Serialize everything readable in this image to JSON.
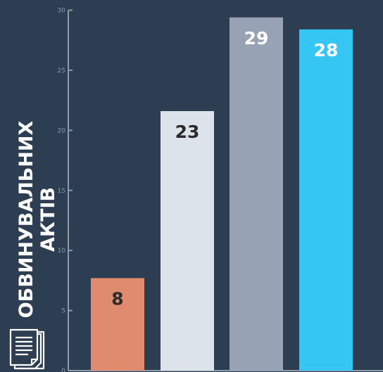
{
  "chart_data": {
    "type": "bar",
    "categories": [
      "",
      "",
      "",
      ""
    ],
    "values": [
      8,
      23,
      29,
      28
    ],
    "bar_heights_estimated": [
      7.7,
      21.6,
      29.4,
      28.4
    ],
    "data_labels": [
      "8",
      "23",
      "29",
      "28"
    ],
    "colors": [
      "#e08a6e",
      "#dde3eb",
      "#97a3b5",
      "#35c6f3"
    ],
    "ylabel_lines": [
      "ОБВИНУВАЛЬНИХ",
      "АКТІВ"
    ],
    "yticks": [
      0,
      5,
      10,
      15,
      20,
      25,
      30
    ],
    "ylim": [
      0,
      30
    ],
    "grid": false
  },
  "icons": {
    "document": "document-stack-icon"
  },
  "colors": {
    "background": "#2d3d52",
    "axis": "#8f9aab",
    "tick_text": "#8f9aab",
    "label_text": "#2b2b2b",
    "label_text_light": "#ffffff"
  }
}
